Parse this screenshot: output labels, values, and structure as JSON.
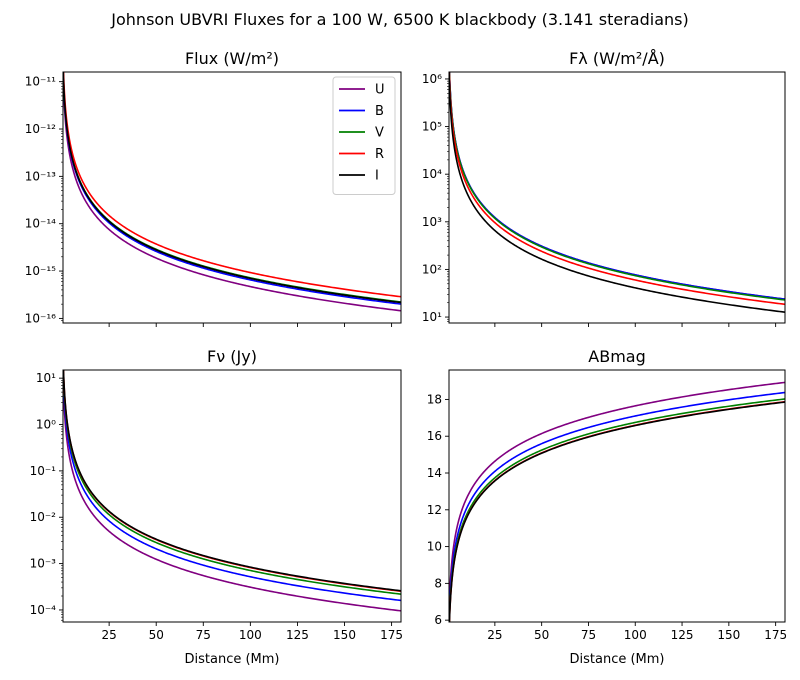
{
  "suptitle": "Johnson UBVRI Fluxes for a 100 W, 6500 K blackbody (3.141 steradians)",
  "chart_data": [
    {
      "type": "line",
      "title": "Flux (W/m²)",
      "xlabel": "",
      "ylabel": "",
      "yscale": "log",
      "xlim": [
        0.5,
        180
      ],
      "ylim": [
        8e-17,
        1.6e-11
      ],
      "xticks": [
        25,
        50,
        75,
        100,
        125,
        150,
        175
      ],
      "xticklabels": [
        "",
        "",
        "",
        "",
        "",
        "",
        ""
      ],
      "yticks": [
        1e-16,
        1e-15,
        1e-14,
        1e-13,
        1e-12,
        1e-11
      ],
      "yticklabels": [
        "10⁻¹⁶",
        "10⁻¹⁵",
        "10⁻¹⁴",
        "10⁻¹³",
        "10⁻¹²",
        "10⁻¹¹"
      ],
      "legend": "top-right",
      "model": "inverse-square",
      "series": [
        {
          "name": "U",
          "color": "#800080",
          "value_at_1": 4.7e-12
        },
        {
          "name": "B",
          "color": "#0000ff",
          "value_at_1": 6.5e-12
        },
        {
          "name": "V",
          "color": "#008000",
          "value_at_1": 7.2e-12
        },
        {
          "name": "R",
          "color": "#ff0000",
          "value_at_1": 9.3e-12
        },
        {
          "name": "I",
          "color": "#000000",
          "value_at_1": 7e-12
        }
      ]
    },
    {
      "type": "line",
      "title": "Fλ (W/m²/Å)",
      "xlabel": "",
      "ylabel": "",
      "yscale": "log",
      "xlim": [
        0.5,
        180
      ],
      "ylim": [
        7.5,
        1400000.0
      ],
      "xticks": [
        25,
        50,
        75,
        100,
        125,
        150,
        175
      ],
      "xticklabels": [
        "",
        "",
        "",
        "",
        "",
        "",
        ""
      ],
      "yticks": [
        10,
        100,
        1000,
        10000,
        100000,
        1000000
      ],
      "yticklabels": [
        "10¹",
        "10²",
        "10³",
        "10⁴",
        "10⁵",
        "10⁶"
      ],
      "legend": "none",
      "model": "inverse-square",
      "series": [
        {
          "name": "U",
          "color": "#800080",
          "value_at_1": 770000.0
        },
        {
          "name": "B",
          "color": "#0000ff",
          "value_at_1": 770000.0
        },
        {
          "name": "V",
          "color": "#008000",
          "value_at_1": 740000.0
        },
        {
          "name": "R",
          "color": "#ff0000",
          "value_at_1": 600000.0
        },
        {
          "name": "I",
          "color": "#000000",
          "value_at_1": 410000.0
        }
      ]
    },
    {
      "type": "line",
      "title": "Fν (Jy)",
      "xlabel": "Distance (Mm)",
      "ylabel": "",
      "yscale": "log",
      "xlim": [
        0.5,
        180
      ],
      "ylim": [
        5.5e-05,
        15
      ],
      "xticks": [
        25,
        50,
        75,
        100,
        125,
        150,
        175
      ],
      "xticklabels": [
        "25",
        "50",
        "75",
        "100",
        "125",
        "150",
        "175"
      ],
      "yticks": [
        0.0001,
        0.001,
        0.01,
        0.1,
        1,
        10
      ],
      "yticklabels": [
        "10⁻⁴",
        "10⁻³",
        "10⁻²",
        "10⁻¹",
        "10⁰",
        "10¹"
      ],
      "legend": "none",
      "model": "inverse-square",
      "series": [
        {
          "name": "U",
          "color": "#800080",
          "value_at_1": 3.1
        },
        {
          "name": "B",
          "color": "#0000ff",
          "value_at_1": 5.2
        },
        {
          "name": "V",
          "color": "#008000",
          "value_at_1": 7.1
        },
        {
          "name": "R",
          "color": "#ff0000",
          "value_at_1": 8.2
        },
        {
          "name": "I",
          "color": "#000000",
          "value_at_1": 8.4
        }
      ]
    },
    {
      "type": "line",
      "title": "ABmag",
      "xlabel": "Distance (Mm)",
      "ylabel": "",
      "yscale": "linear",
      "xlim": [
        0.5,
        180
      ],
      "ylim": [
        5.9,
        19.6
      ],
      "xticks": [
        25,
        50,
        75,
        100,
        125,
        150,
        175
      ],
      "xticklabels": [
        "25",
        "50",
        "75",
        "100",
        "125",
        "150",
        "175"
      ],
      "yticks": [
        6,
        8,
        10,
        12,
        14,
        16,
        18
      ],
      "yticklabels": [
        "6",
        "8",
        "10",
        "12",
        "14",
        "16",
        "18"
      ],
      "legend": "none",
      "model": "distance-modulus",
      "series": [
        {
          "name": "U",
          "color": "#800080",
          "value_at_1": 7.65
        },
        {
          "name": "B",
          "color": "#0000ff",
          "value_at_1": 7.1
        },
        {
          "name": "V",
          "color": "#008000",
          "value_at_1": 6.75
        },
        {
          "name": "R",
          "color": "#ff0000",
          "value_at_1": 6.6
        },
        {
          "name": "I",
          "color": "#000000",
          "value_at_1": 6.58
        }
      ]
    }
  ]
}
